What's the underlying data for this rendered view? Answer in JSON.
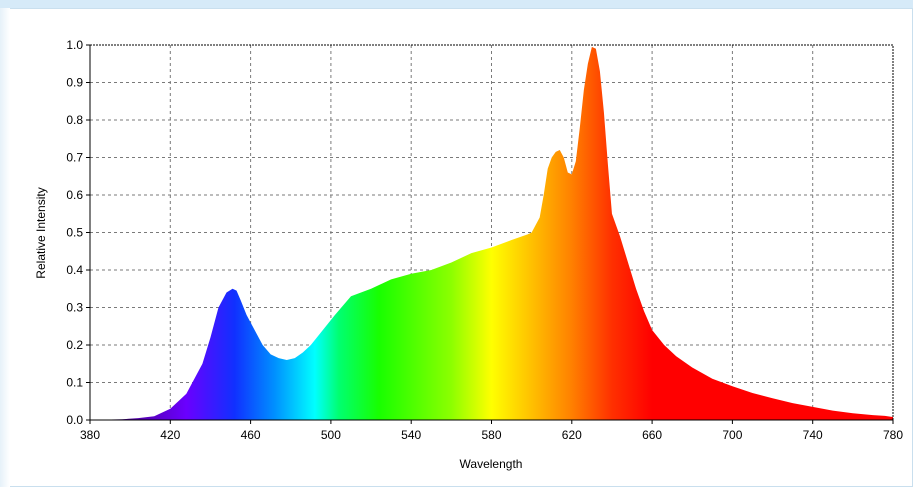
{
  "chart_data": {
    "type": "area",
    "xlabel": "Wavelength",
    "ylabel": "Relative Intensity",
    "xlim": [
      380,
      780
    ],
    "ylim": [
      0.0,
      1.0
    ],
    "grid": true,
    "fill": "spectral",
    "x_ticks": [
      "380",
      "420",
      "460",
      "500",
      "540",
      "580",
      "620",
      "660",
      "700",
      "740",
      "780"
    ],
    "y_ticks": [
      "0.0",
      "0.1",
      "0.2",
      "0.3",
      "0.4",
      "0.5",
      "0.6",
      "0.7",
      "0.8",
      "0.9",
      "1.0"
    ],
    "series": [
      {
        "x": [
          380,
          396,
          404,
          412,
          420,
          428,
          436,
          440,
          444,
          448,
          451,
          453,
          455,
          458,
          462,
          466,
          470,
          474,
          478,
          482,
          486,
          490,
          496,
          502,
          510,
          520,
          530,
          540,
          550,
          560,
          570,
          580,
          590,
          598,
          600,
          604,
          606,
          608,
          610,
          612,
          614,
          616,
          618,
          620,
          622,
          624,
          626,
          628,
          630,
          632,
          634,
          636,
          638,
          640,
          644,
          648,
          652,
          656,
          660,
          666,
          672,
          680,
          690,
          700,
          710,
          720,
          730,
          740,
          750,
          760,
          770,
          776,
          780
        ],
        "y": [
          0.0,
          0.002,
          0.005,
          0.01,
          0.03,
          0.07,
          0.15,
          0.22,
          0.3,
          0.34,
          0.35,
          0.345,
          0.32,
          0.28,
          0.24,
          0.2,
          0.175,
          0.165,
          0.16,
          0.165,
          0.18,
          0.2,
          0.24,
          0.28,
          0.33,
          0.35,
          0.375,
          0.39,
          0.4,
          0.42,
          0.445,
          0.46,
          0.48,
          0.495,
          0.5,
          0.54,
          0.6,
          0.67,
          0.7,
          0.715,
          0.72,
          0.7,
          0.66,
          0.655,
          0.69,
          0.78,
          0.88,
          0.95,
          0.995,
          0.99,
          0.93,
          0.82,
          0.68,
          0.55,
          0.49,
          0.42,
          0.35,
          0.29,
          0.24,
          0.2,
          0.17,
          0.14,
          0.11,
          0.09,
          0.072,
          0.058,
          0.045,
          0.035,
          0.025,
          0.018,
          0.013,
          0.011,
          0.008
        ]
      }
    ]
  }
}
